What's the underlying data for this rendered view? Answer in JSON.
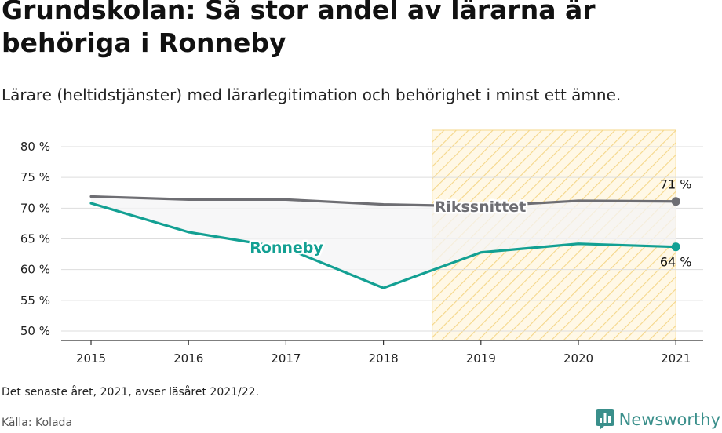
{
  "header": {
    "title": "Grundskolan: Så stor andel av lärarna är behöriga i Ronneby",
    "subtitle": "Lärare (heltidstjänster) med lärarlegitimation och behörighet i minst ett ämne."
  },
  "footer": {
    "note": "Det senaste året, 2021, avser läsåret 2021/22.",
    "source": "Källa: Kolada",
    "brand": "Newsworthy",
    "brand_icon": "newsworthy-logo-icon"
  },
  "colors": {
    "ronneby": "#13a093",
    "riks": "#6e6e73",
    "highlight_fill": "#fff8e6",
    "highlight_hatch": "#f5d78a",
    "gap_fill": "#f4f4f5",
    "grid": "#dddddd"
  },
  "chart_data": {
    "type": "line",
    "x": [
      2015,
      2016,
      2017,
      2018,
      2019,
      2020,
      2021
    ],
    "ylim": [
      50,
      80
    ],
    "yticks": [
      50,
      55,
      60,
      65,
      70,
      75,
      80
    ],
    "ytick_suffix": " %",
    "grid": true,
    "highlight_range": [
      2019,
      2021
    ],
    "series": [
      {
        "name": "Rikssnittet",
        "key": "riks",
        "values": [
          71.9,
          71.4,
          71.4,
          70.6,
          70.3,
          71.2,
          71.1
        ],
        "end_label": "71 %"
      },
      {
        "name": "Ronneby",
        "key": "ronneby",
        "values": [
          70.8,
          66.1,
          63.5,
          57.0,
          62.8,
          64.2,
          63.7
        ],
        "end_label": "64 %"
      }
    ]
  }
}
